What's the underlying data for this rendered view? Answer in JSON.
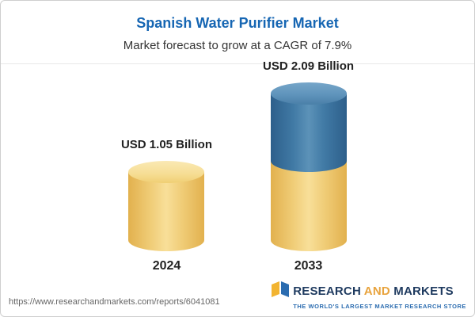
{
  "header": {
    "title": "Spanish Water Purifier Market",
    "subtitle": "Market forecast to grow at a CAGR of 7.9%"
  },
  "chart_data": {
    "type": "bar",
    "title": "Spanish Water Purifier Market",
    "subtitle": "Market forecast to grow at a CAGR of 7.9%",
    "cagr_percent": 7.9,
    "unit": "USD Billion",
    "categories": [
      "2024",
      "2033"
    ],
    "values": [
      1.05,
      2.09
    ],
    "value_labels": [
      "USD 1.05 Billion",
      "USD 2.09 Billion"
    ],
    "ylim": [
      0,
      2.5
    ],
    "grid": false,
    "legend": false,
    "colors": {
      "base_segment": "#F0CD78",
      "growth_segment": "#417AA5",
      "title_text": "#1666B3"
    },
    "notes": "2033 bar is stacked: yellow base equals 2024 value (1.05), blue top equals growth (1.04)"
  },
  "footer": {
    "url": "https://www.researchandmarkets.com/reports/6041081",
    "logo": {
      "part1": "RESEARCH",
      "part2": "AND",
      "part3": "MARKETS",
      "tagline": "THE WORLD'S LARGEST MARKET RESEARCH STORE"
    }
  }
}
